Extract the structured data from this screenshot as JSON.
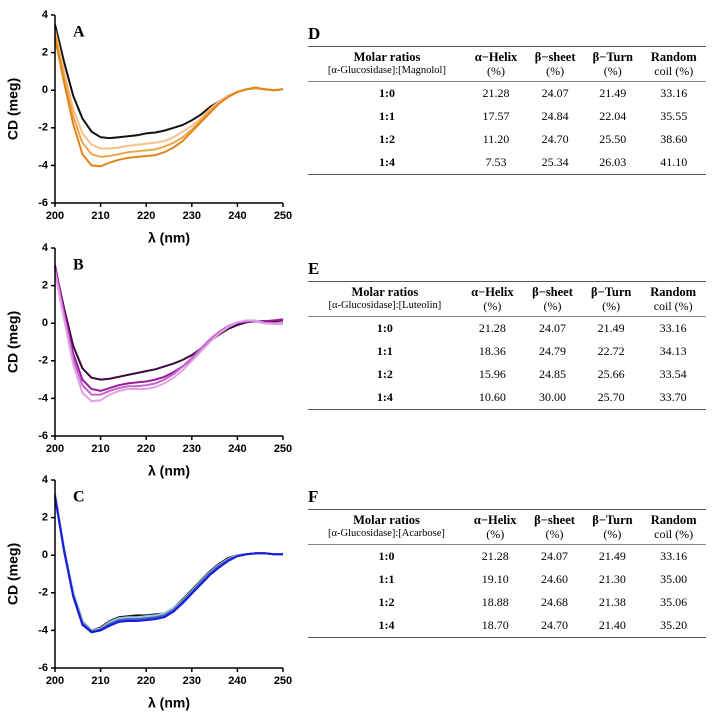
{
  "chart_data": [
    {
      "type": "line",
      "title": "A",
      "xlabel": "λ (nm)",
      "ylabel": "CD (meg)",
      "x": [
        200,
        202,
        204,
        206,
        208,
        210,
        212,
        214,
        216,
        218,
        220,
        222,
        224,
        226,
        228,
        230,
        232,
        234,
        236,
        238,
        240,
        242,
        244,
        246,
        248,
        250
      ],
      "xlim": [
        200,
        250
      ],
      "xticks": [
        200,
        210,
        220,
        230,
        240,
        250
      ],
      "ylim": [
        -6,
        4
      ],
      "yticks": [
        -6,
        -4,
        -2,
        0,
        2,
        4
      ],
      "series": [
        {
          "color": "#111111",
          "values": [
            3.5,
            1.5,
            -0.3,
            -1.5,
            -2.2,
            -2.5,
            -2.55,
            -2.5,
            -2.45,
            -2.4,
            -2.3,
            -2.25,
            -2.15,
            -2.0,
            -1.85,
            -1.6,
            -1.3,
            -0.9,
            -0.6,
            -0.3,
            -0.1,
            0.05,
            0.1,
            0.05,
            0.0,
            0.05
          ]
        },
        {
          "color": "#f5c08a",
          "values": [
            3.2,
            1.0,
            -1.0,
            -2.3,
            -2.9,
            -3.1,
            -3.1,
            -3.05,
            -2.95,
            -2.9,
            -2.85,
            -2.8,
            -2.7,
            -2.5,
            -2.2,
            -1.9,
            -1.5,
            -1.0,
            -0.6,
            -0.3,
            -0.1,
            0.05,
            0.1,
            0.05,
            0.0,
            0.05
          ]
        },
        {
          "color": "#eea550",
          "values": [
            3.0,
            0.7,
            -1.4,
            -2.8,
            -3.4,
            -3.55,
            -3.5,
            -3.4,
            -3.3,
            -3.25,
            -3.2,
            -3.15,
            -3.0,
            -2.8,
            -2.5,
            -2.1,
            -1.6,
            -1.1,
            -0.7,
            -0.35,
            -0.1,
            0.05,
            0.1,
            0.05,
            0.0,
            0.05
          ]
        },
        {
          "color": "#e0861a",
          "values": [
            2.8,
            0.4,
            -1.8,
            -3.4,
            -4.0,
            -4.05,
            -3.85,
            -3.7,
            -3.6,
            -3.55,
            -3.5,
            -3.45,
            -3.3,
            -3.05,
            -2.7,
            -2.2,
            -1.7,
            -1.2,
            -0.7,
            -0.35,
            -0.1,
            0.05,
            0.15,
            0.05,
            0.0,
            0.05
          ]
        }
      ]
    },
    {
      "type": "line",
      "title": "B",
      "xlabel": "λ (nm)",
      "ylabel": "CD (meg)",
      "x": [
        200,
        202,
        204,
        206,
        208,
        210,
        212,
        214,
        216,
        218,
        220,
        222,
        224,
        226,
        228,
        230,
        232,
        234,
        236,
        238,
        240,
        242,
        244,
        246,
        248,
        250
      ],
      "xlim": [
        200,
        250
      ],
      "xticks": [
        200,
        210,
        220,
        230,
        240,
        250
      ],
      "ylim": [
        -6,
        4
      ],
      "yticks": [
        -6,
        -4,
        -2,
        0,
        2,
        4
      ],
      "series": [
        {
          "color": "#3a0a3a",
          "values": [
            3.0,
            0.8,
            -1.2,
            -2.4,
            -2.9,
            -3.0,
            -2.95,
            -2.85,
            -2.75,
            -2.65,
            -2.55,
            -2.45,
            -2.3,
            -2.15,
            -1.95,
            -1.7,
            -1.35,
            -0.95,
            -0.6,
            -0.3,
            -0.1,
            0.05,
            0.1,
            0.1,
            0.1,
            0.15
          ]
        },
        {
          "color": "#9a1a9e",
          "values": [
            3.1,
            0.6,
            -1.6,
            -3.0,
            -3.5,
            -3.6,
            -3.45,
            -3.3,
            -3.2,
            -3.15,
            -3.1,
            -3.0,
            -2.85,
            -2.6,
            -2.3,
            -1.9,
            -1.4,
            -0.9,
            -0.5,
            -0.2,
            0.0,
            0.1,
            0.1,
            0.1,
            0.15,
            0.2
          ]
        },
        {
          "color": "#c565cc",
          "values": [
            2.9,
            0.4,
            -1.9,
            -3.3,
            -3.8,
            -3.8,
            -3.6,
            -3.45,
            -3.35,
            -3.35,
            -3.3,
            -3.2,
            -3.0,
            -2.7,
            -2.3,
            -1.85,
            -1.35,
            -0.85,
            -0.45,
            -0.15,
            0.05,
            0.1,
            0.1,
            0.0,
            0.0,
            0.0
          ]
        },
        {
          "color": "#e2a0e6",
          "values": [
            2.7,
            0.2,
            -2.2,
            -3.7,
            -4.15,
            -4.1,
            -3.8,
            -3.6,
            -3.5,
            -3.5,
            -3.5,
            -3.4,
            -3.2,
            -2.9,
            -2.5,
            -2.0,
            -1.5,
            -1.0,
            -0.55,
            -0.2,
            0.05,
            0.15,
            0.15,
            0.0,
            -0.05,
            -0.05
          ]
        }
      ]
    },
    {
      "type": "line",
      "title": "C",
      "xlabel": "λ (nm)",
      "ylabel": "CD (meg)",
      "x": [
        200,
        202,
        204,
        206,
        208,
        210,
        212,
        214,
        216,
        218,
        220,
        222,
        224,
        226,
        228,
        230,
        232,
        234,
        236,
        238,
        240,
        242,
        244,
        246,
        248,
        250
      ],
      "xlim": [
        200,
        250
      ],
      "xticks": [
        200,
        210,
        220,
        230,
        240,
        250
      ],
      "ylim": [
        -6,
        4
      ],
      "yticks": [
        -6,
        -4,
        -2,
        0,
        2,
        4
      ],
      "series": [
        {
          "color": "#111111",
          "values": [
            3.2,
            0.3,
            -2.0,
            -3.5,
            -4.0,
            -3.85,
            -3.5,
            -3.3,
            -3.25,
            -3.2,
            -3.2,
            -3.15,
            -3.1,
            -2.8,
            -2.35,
            -1.85,
            -1.35,
            -0.85,
            -0.45,
            -0.15,
            0.0,
            0.05,
            0.1,
            0.1,
            0.05,
            0.05
          ]
        },
        {
          "color": "#9ecae1",
          "values": [
            3.3,
            0.4,
            -2.0,
            -3.5,
            -4.0,
            -3.9,
            -3.55,
            -3.35,
            -3.3,
            -3.3,
            -3.25,
            -3.2,
            -3.1,
            -2.8,
            -2.4,
            -1.9,
            -1.4,
            -0.9,
            -0.5,
            -0.2,
            0.0,
            0.05,
            0.1,
            0.1,
            0.05,
            0.05
          ]
        },
        {
          "color": "#4060c0",
          "values": [
            3.2,
            0.3,
            -2.1,
            -3.6,
            -4.05,
            -3.95,
            -3.65,
            -3.45,
            -3.4,
            -3.4,
            -3.35,
            -3.3,
            -3.2,
            -2.9,
            -2.45,
            -1.95,
            -1.45,
            -0.95,
            -0.55,
            -0.25,
            -0.05,
            0.05,
            0.1,
            0.1,
            0.05,
            0.05
          ]
        },
        {
          "color": "#1a1adf",
          "values": [
            3.1,
            0.2,
            -2.2,
            -3.7,
            -4.1,
            -4.0,
            -3.75,
            -3.55,
            -3.5,
            -3.5,
            -3.45,
            -3.4,
            -3.3,
            -3.0,
            -2.55,
            -2.05,
            -1.55,
            -1.05,
            -0.65,
            -0.3,
            -0.05,
            0.05,
            0.1,
            0.1,
            0.05,
            0.05
          ]
        }
      ]
    }
  ],
  "tables": [
    {
      "label": "D",
      "header": [
        [
          "Molar ratios",
          "[α-Glucosidase]:[Magnolol]"
        ],
        [
          "α−Helix",
          "(%)"
        ],
        [
          "β−sheet",
          "(%)"
        ],
        [
          "β−Turn",
          "(%)"
        ],
        [
          "Random",
          "coil (%)"
        ]
      ],
      "rows": [
        [
          "1:0",
          "21.28",
          "24.07",
          "21.49",
          "33.16"
        ],
        [
          "1:1",
          "17.57",
          "24.84",
          "22.04",
          "35.55"
        ],
        [
          "1:2",
          "11.20",
          "24.70",
          "25.50",
          "38.60"
        ],
        [
          "1:4",
          "7.53",
          "25.34",
          "26.03",
          "41.10"
        ]
      ]
    },
    {
      "label": "E",
      "header": [
        [
          "Molar ratios",
          "[α-Glucosidase]:[Luteolin]"
        ],
        [
          "α−Helix",
          "(%)"
        ],
        [
          "β−sheet",
          "(%)"
        ],
        [
          "β−Turn",
          "(%)"
        ],
        [
          "Random",
          "coil (%)"
        ]
      ],
      "rows": [
        [
          "1:0",
          "21.28",
          "24.07",
          "21.49",
          "33.16"
        ],
        [
          "1:1",
          "18.36",
          "24.79",
          "22.72",
          "34.13"
        ],
        [
          "1:2",
          "15.96",
          "24.85",
          "25.66",
          "33.54"
        ],
        [
          "1:4",
          "10.60",
          "30.00",
          "25.70",
          "33.70"
        ]
      ]
    },
    {
      "label": "F",
      "header": [
        [
          "Molar ratios",
          "[α-Glucosidase]:[Acarbose]"
        ],
        [
          "α−Helix",
          "(%)"
        ],
        [
          "β−sheet",
          "(%)"
        ],
        [
          "β−Turn",
          "(%)"
        ],
        [
          "Random",
          "coil (%)"
        ]
      ],
      "rows": [
        [
          "1:0",
          "21.28",
          "24.07",
          "21.49",
          "33.16"
        ],
        [
          "1:1",
          "19.10",
          "24.60",
          "21.30",
          "35.00"
        ],
        [
          "1:2",
          "18.88",
          "24.68",
          "21.38",
          "35.06"
        ],
        [
          "1:4",
          "18.70",
          "24.70",
          "21.40",
          "35.20"
        ]
      ]
    }
  ]
}
